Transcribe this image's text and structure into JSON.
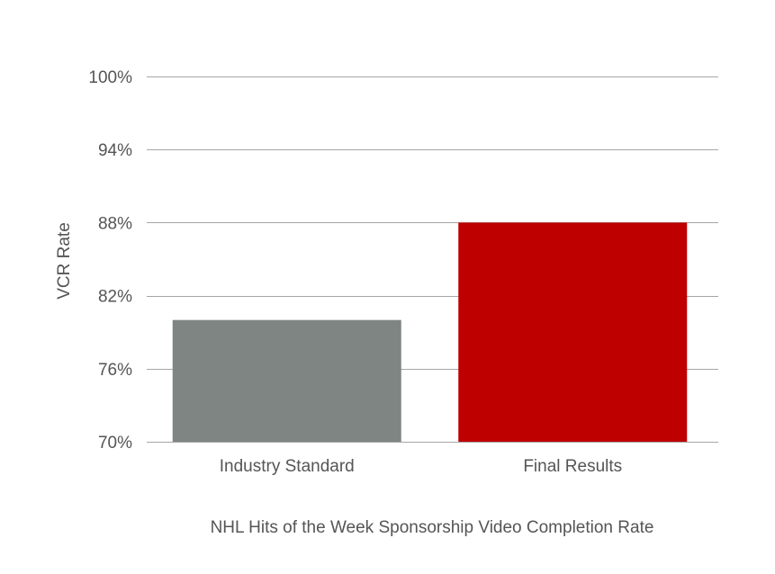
{
  "chart_data": {
    "type": "bar",
    "categories": [
      "Industry Standard",
      "Final Results"
    ],
    "values": [
      80,
      88
    ],
    "bar_colors": [
      "#7f8583",
      "#be0000"
    ],
    "xlabel": "NHL Hits of the Week Sponsorship Video Completion Rate",
    "ylabel": "VCR Rate",
    "ylim": [
      70,
      100
    ],
    "yticks": [
      70,
      76,
      82,
      88,
      94,
      100
    ],
    "ytick_labels": [
      "70%",
      "76%",
      "82%",
      "88%",
      "94%",
      "100%"
    ],
    "grid": true,
    "legend": "none"
  },
  "colors": {
    "grid": "#a6a6a6",
    "text": "#555555"
  }
}
